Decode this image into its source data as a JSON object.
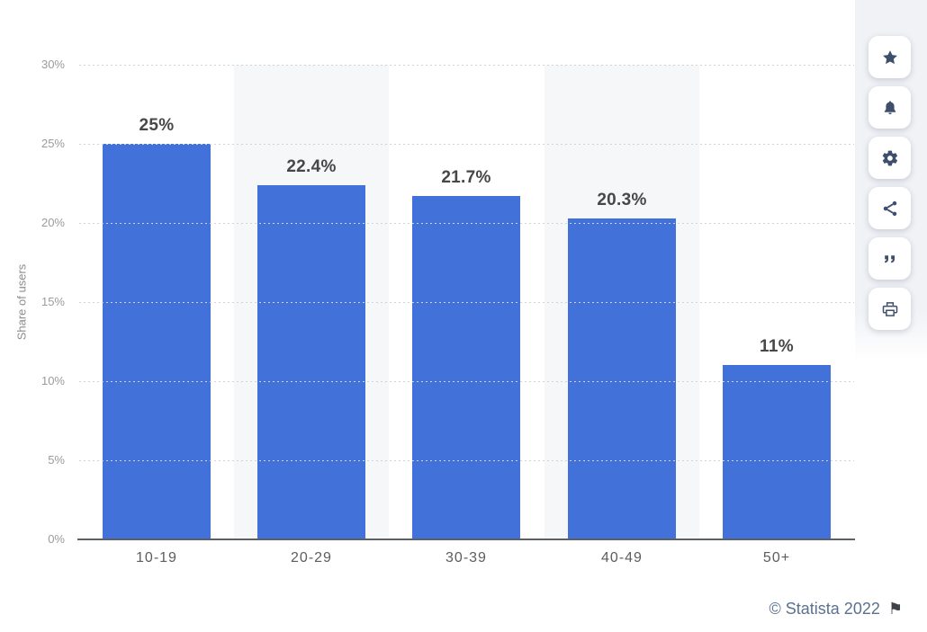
{
  "chart_data": {
    "type": "bar",
    "title": "",
    "categories": [
      "10-19",
      "20-29",
      "30-39",
      "40-49",
      "50+"
    ],
    "values": [
      25,
      22.4,
      21.7,
      20.3,
      11
    ],
    "value_labels": [
      "25%",
      "22.4%",
      "21.7%",
      "20.3%",
      "11%"
    ],
    "xlabel": "",
    "ylabel": "Share of users",
    "ylim": [
      0,
      30
    ],
    "ytick_step": 5,
    "yticks_top_to_bottom": [
      "30%",
      "25%",
      "20%",
      "15%",
      "10%",
      "5%",
      "0%"
    ],
    "grid": "horizontal-dotted",
    "legend": "none",
    "bar_color": "#4272d9",
    "striped_columns": [
      2,
      4
    ]
  },
  "toolbar": {
    "buttons": [
      {
        "id": "favorite",
        "icon": "star-icon"
      },
      {
        "id": "alerts",
        "icon": "bell-icon"
      },
      {
        "id": "settings",
        "icon": "gear-icon"
      },
      {
        "id": "share",
        "icon": "share-icon"
      },
      {
        "id": "cite",
        "icon": "quote-icon"
      },
      {
        "id": "print",
        "icon": "print-icon"
      }
    ]
  },
  "footer": {
    "attribution": "© Statista 2022",
    "flag": "⚑"
  }
}
